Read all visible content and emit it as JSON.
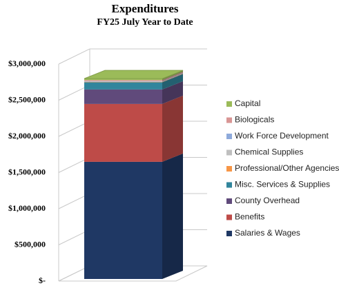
{
  "chart_data": {
    "type": "bar3d_stacked",
    "title": "Expenditures",
    "subtitle": "FY25 July Year to Date",
    "series": [
      {
        "name": "Salaries & Wages",
        "color": "#1f3864",
        "values": [
          1620000
        ]
      },
      {
        "name": "Benefits",
        "color": "#be4b48",
        "values": [
          800000
        ]
      },
      {
        "name": "County Overhead",
        "color": "#604a7b",
        "values": [
          200000
        ]
      },
      {
        "name": "Misc. Services & Supplies",
        "color": "#31859c",
        "values": [
          100000
        ]
      },
      {
        "name": "Professional/Other Agencies",
        "color": "#f79646",
        "values": [
          5000
        ]
      },
      {
        "name": "Chemical Supplies",
        "color": "#bfbfbf",
        "values": [
          5000
        ]
      },
      {
        "name": "Work Force Development",
        "color": "#8eaadb",
        "values": [
          5000
        ]
      },
      {
        "name": "Biologicals",
        "color": "#d99594",
        "values": [
          15000
        ]
      },
      {
        "name": "Capital",
        "color": "#9bbb59",
        "values": [
          20000
        ]
      }
    ],
    "ylim": [
      0,
      3000000
    ],
    "yticks": [
      {
        "value": 0,
        "label": "$-"
      },
      {
        "value": 500000,
        "label": "$500,000"
      },
      {
        "value": 1000000,
        "label": "$1,000,000"
      },
      {
        "value": 1500000,
        "label": "$1,500,000"
      },
      {
        "value": 2000000,
        "label": "$2,000,000"
      },
      {
        "value": 2500000,
        "label": "$2,500,000"
      },
      {
        "value": 3000000,
        "label": "$3,000,000"
      }
    ],
    "grid": true,
    "legend": "right"
  }
}
